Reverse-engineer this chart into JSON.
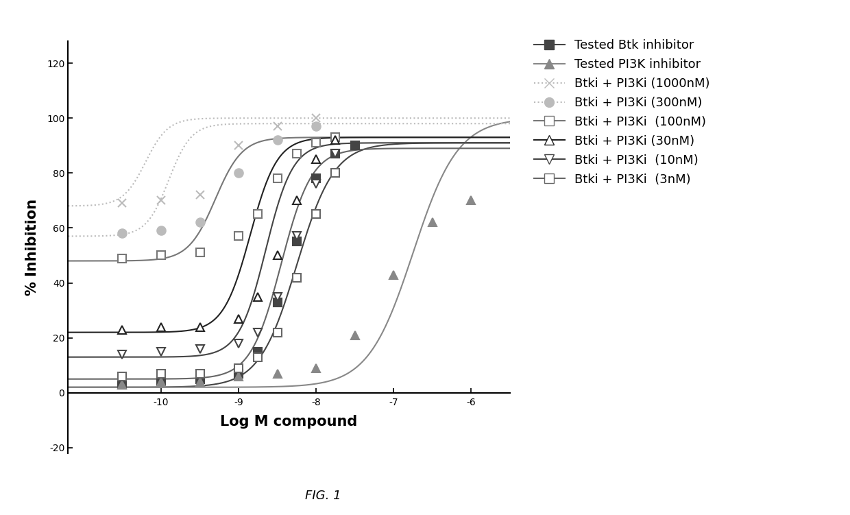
{
  "fig_label": "FIG. 1",
  "xlabel": "Log M compound",
  "ylabel": "% Inhibition",
  "xlim": [
    -11.2,
    -5.5
  ],
  "ylim": [
    -22,
    128
  ],
  "xticks": [
    -10,
    -9,
    -8,
    -7,
    -6
  ],
  "yticks": [
    -20,
    0,
    20,
    40,
    60,
    80,
    100,
    120
  ],
  "background_color": "#ffffff",
  "series": [
    {
      "label": "Tested Btk inhibitor",
      "color": "#444444",
      "marker": "s",
      "marker_face": "#444444",
      "linestyle": "-",
      "ec50_log": -8.25,
      "bottom": 2,
      "top": 91,
      "hill": 1.8,
      "x_points": [
        -10.5,
        -10.0,
        -9.5,
        -9.0,
        -8.75,
        -8.5,
        -8.25,
        -8.0,
        -7.75,
        -7.5
      ],
      "y_points": [
        3,
        4,
        5,
        7,
        15,
        33,
        55,
        78,
        87,
        90
      ]
    },
    {
      "label": "Tested PI3K inhibitor",
      "color": "#888888",
      "marker": "^",
      "marker_face": "#888888",
      "linestyle": "-",
      "ec50_log": -6.75,
      "bottom": 2,
      "top": 100,
      "hill": 1.5,
      "x_points": [
        -10.5,
        -10.0,
        -9.5,
        -9.0,
        -8.5,
        -8.0,
        -7.5,
        -7.0,
        -6.5,
        -6.0
      ],
      "y_points": [
        3,
        4,
        4,
        6,
        7,
        9,
        21,
        43,
        62,
        70
      ]
    },
    {
      "label": "Btki + PI3Ki (1000nM)",
      "color": "#bbbbbb",
      "marker": "x",
      "marker_face": "#bbbbbb",
      "linestyle": ":",
      "ec50_log": -10.2,
      "bottom": 68,
      "top": 100,
      "hill": 3.0,
      "x_points": [
        -10.5,
        -10.0,
        -9.5,
        -9.0,
        -8.5,
        -8.0
      ],
      "y_points": [
        69,
        70,
        72,
        90,
        97,
        100
      ]
    },
    {
      "label": "Btki + PI3Ki (300nM)",
      "color": "#bbbbbb",
      "marker": "o",
      "marker_face": "#bbbbbb",
      "linestyle": ":",
      "ec50_log": -9.9,
      "bottom": 57,
      "top": 98,
      "hill": 3.0,
      "x_points": [
        -10.5,
        -10.0,
        -9.5,
        -9.0,
        -8.5,
        -8.0
      ],
      "y_points": [
        58,
        59,
        62,
        80,
        92,
        97
      ]
    },
    {
      "label": "Btki + PI3Ki  (100nM)",
      "color": "#777777",
      "marker": "s",
      "marker_face": "white",
      "linestyle": "-",
      "ec50_log": -9.3,
      "bottom": 48,
      "top": 93,
      "hill": 2.5,
      "x_points": [
        -10.5,
        -10.0,
        -9.5,
        -9.0,
        -8.75,
        -8.5,
        -8.25,
        -8.0,
        -7.75
      ],
      "y_points": [
        49,
        50,
        51,
        57,
        65,
        78,
        87,
        91,
        93
      ]
    },
    {
      "label": "Btki + PI3Ki (30nM)",
      "color": "#222222",
      "marker": "^",
      "marker_face": "white",
      "linestyle": "-",
      "ec50_log": -8.85,
      "bottom": 22,
      "top": 93,
      "hill": 2.5,
      "x_points": [
        -10.5,
        -10.0,
        -9.5,
        -9.0,
        -8.75,
        -8.5,
        -8.25,
        -8.0,
        -7.75
      ],
      "y_points": [
        23,
        24,
        24,
        27,
        35,
        50,
        70,
        85,
        92
      ]
    },
    {
      "label": "Btki + PI3Ki  (10nM)",
      "color": "#444444",
      "marker": "v",
      "marker_face": "white",
      "linestyle": "-",
      "ec50_log": -8.65,
      "bottom": 13,
      "top": 91,
      "hill": 2.5,
      "x_points": [
        -10.5,
        -10.0,
        -9.5,
        -9.0,
        -8.75,
        -8.5,
        -8.25,
        -8.0,
        -7.75
      ],
      "y_points": [
        14,
        15,
        16,
        18,
        22,
        35,
        57,
        76,
        87
      ]
    },
    {
      "label": "Btki + PI3Ki  (3nM)",
      "color": "#666666",
      "marker": "s",
      "marker_face": "white",
      "linestyle": "-",
      "ec50_log": -8.45,
      "bottom": 5,
      "top": 89,
      "hill": 2.2,
      "x_points": [
        -10.5,
        -10.0,
        -9.5,
        -9.0,
        -8.75,
        -8.5,
        -8.25,
        -8.0,
        -7.75
      ],
      "y_points": [
        6,
        7,
        7,
        9,
        13,
        22,
        42,
        65,
        80
      ]
    }
  ],
  "legend_entries": [
    {
      "label": "Tested Btk inhibitor",
      "marker": "s",
      "color": "#444444",
      "mfc": "#444444",
      "ls": "-"
    },
    {
      "label": "Tested PI3K inhibitor",
      "marker": "^",
      "color": "#888888",
      "mfc": "#888888",
      "ls": "-"
    },
    {
      "label": "Btki + PI3Ki (1000nM)",
      "marker": "x",
      "color": "#bbbbbb",
      "mfc": "#bbbbbb",
      "ls": ":"
    },
    {
      "label": "Btki + PI3Ki (300nM)",
      "marker": "o",
      "color": "#bbbbbb",
      "mfc": "#bbbbbb",
      "ls": ":"
    },
    {
      "label": "Btki + PI3Ki  (100nM)",
      "marker": "s",
      "color": "#777777",
      "mfc": "white",
      "ls": "-"
    },
    {
      "label": "Btki + PI3Ki (30nM)",
      "marker": "^",
      "color": "#222222",
      "mfc": "white",
      "ls": "-"
    },
    {
      "label": "Btki + PI3Ki  (10nM)",
      "marker": "v",
      "color": "#444444",
      "mfc": "white",
      "ls": "-"
    },
    {
      "label": "Btki + PI3Ki  (3nM)",
      "marker": "s",
      "color": "#666666",
      "mfc": "white",
      "ls": "-"
    }
  ]
}
